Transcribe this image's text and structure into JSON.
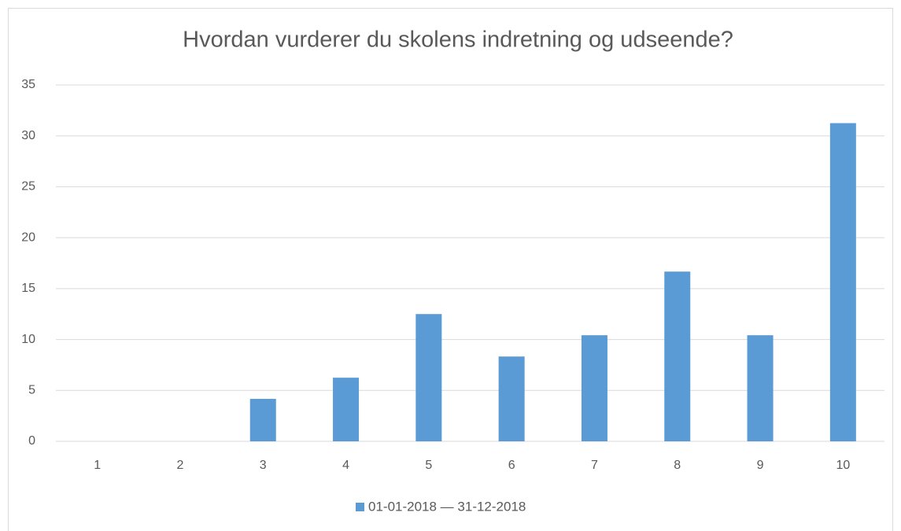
{
  "chart_data": {
    "type": "bar",
    "title": "Hvordan vurderer du skolens indretning og udseende?",
    "categories": [
      "1",
      "2",
      "3",
      "4",
      "5",
      "6",
      "7",
      "8",
      "9",
      "10"
    ],
    "series": [
      {
        "name": "01-01-2018 — 31-12-2018",
        "color": "#5b9bd5",
        "values": [
          0,
          0,
          4.17,
          6.25,
          12.5,
          8.33,
          10.42,
          16.67,
          10.42,
          31.25
        ]
      }
    ],
    "ylim": [
      0,
      35
    ],
    "yticks": [
      0,
      5,
      10,
      15,
      20,
      25,
      30,
      35
    ],
    "grid": true,
    "legend": "bottom"
  }
}
